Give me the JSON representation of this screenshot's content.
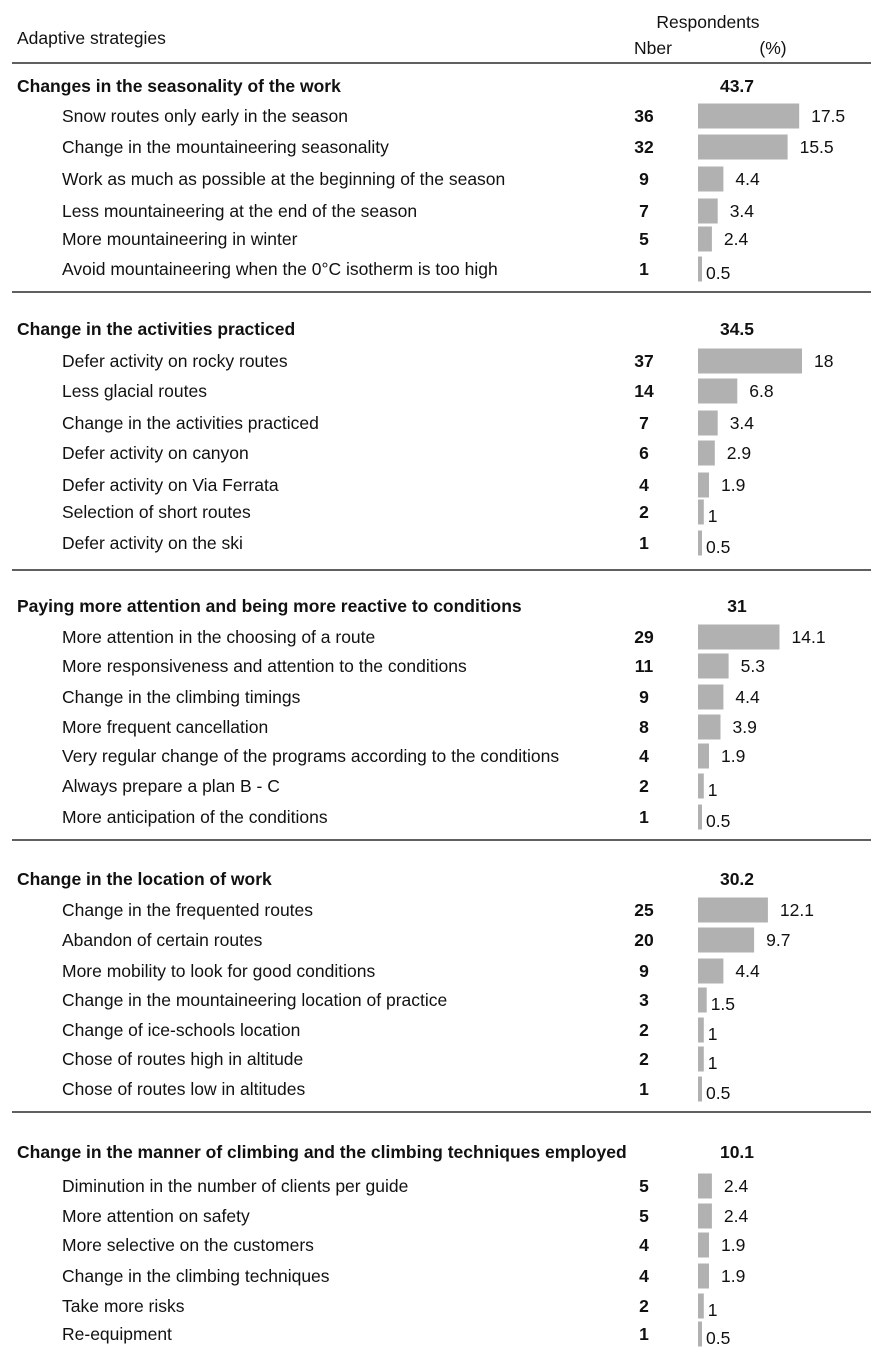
{
  "chart_data": {
    "type": "bar",
    "orientation": "horizontal",
    "header": {
      "strategies_label": "Adaptive strategies",
      "respondents_label": "Respondents",
      "count_label": "Nber",
      "percent_label": "(%)"
    },
    "groups": [
      {
        "title": "Changes in the seasonality of the work",
        "total": "43.7",
        "items": [
          {
            "label": "Snow routes only early in the season",
            "n": 36,
            "pct": 17.5,
            "pct_label": "17.5"
          },
          {
            "label": "Change in the mountaineering seasonality",
            "n": 32,
            "pct": 15.5,
            "pct_label": "15.5"
          },
          {
            "label": "Work as much as possible at the beginning of the season",
            "n": 9,
            "pct": 4.4,
            "pct_label": "4.4"
          },
          {
            "label": "Less mountaineering at the end of the season",
            "n": 7,
            "pct": 3.4,
            "pct_label": "3.4"
          },
          {
            "label": "More mountaineering in winter",
            "n": 5,
            "pct": 2.4,
            "pct_label": "2.4"
          },
          {
            "label": "Avoid mountaineering when the 0°C isotherm is too high",
            "n": 1,
            "pct": 0.5,
            "pct_label": "0.5"
          }
        ]
      },
      {
        "title": "Change in the activities practiced",
        "total": "34.5",
        "items": [
          {
            "label": "Defer activity on rocky routes",
            "n": 37,
            "pct": 18,
            "pct_label": "18"
          },
          {
            "label": "Less glacial routes",
            "n": 14,
            "pct": 6.8,
            "pct_label": "6.8"
          },
          {
            "label": "Change in the activities practiced",
            "n": 7,
            "pct": 3.4,
            "pct_label": "3.4"
          },
          {
            "label": "Defer activity on canyon",
            "n": 6,
            "pct": 2.9,
            "pct_label": "2.9"
          },
          {
            "label": "Defer activity on Via Ferrata",
            "n": 4,
            "pct": 1.9,
            "pct_label": "1.9"
          },
          {
            "label": "Selection of short routes",
            "n": 2,
            "pct": 1,
            "pct_label": "1"
          },
          {
            "label": "Defer activity on the ski",
            "n": 1,
            "pct": 0.5,
            "pct_label": "0.5"
          }
        ]
      },
      {
        "title": "Paying more attention and being more reactive to conditions",
        "total": "31",
        "items": [
          {
            "label": "More attention in the choosing of a route",
            "n": 29,
            "pct": 14.1,
            "pct_label": "14.1"
          },
          {
            "label": "More responsiveness and attention to the conditions",
            "n": 11,
            "pct": 5.3,
            "pct_label": "5.3"
          },
          {
            "label": "Change in the climbing timings",
            "n": 9,
            "pct": 4.4,
            "pct_label": "4.4"
          },
          {
            "label": "More frequent cancellation",
            "n": 8,
            "pct": 3.9,
            "pct_label": "3.9"
          },
          {
            "label": "Very regular change of the programs according to the conditions",
            "n": 4,
            "pct": 1.9,
            "pct_label": "1.9"
          },
          {
            "label": "Always prepare a plan B - C",
            "n": 2,
            "pct": 1,
            "pct_label": "1"
          },
          {
            "label": "More anticipation of the conditions",
            "n": 1,
            "pct": 0.5,
            "pct_label": "0.5"
          }
        ]
      },
      {
        "title": "Change in the location of work",
        "total": "30.2",
        "items": [
          {
            "label": "Change in the frequented routes",
            "n": 25,
            "pct": 12.1,
            "pct_label": "12.1"
          },
          {
            "label": "Abandon of certain routes",
            "n": 20,
            "pct": 9.7,
            "pct_label": "9.7"
          },
          {
            "label": "More mobility to look for good conditions",
            "n": 9,
            "pct": 4.4,
            "pct_label": "4.4"
          },
          {
            "label": "Change in the mountaineering location of  practice",
            "n": 3,
            "pct": 1.5,
            "pct_label": "1.5"
          },
          {
            "label": "Change of ice-schools location",
            "n": 2,
            "pct": 1,
            "pct_label": "1"
          },
          {
            "label": "Chose of routes high in altitude",
            "n": 2,
            "pct": 1,
            "pct_label": "1"
          },
          {
            "label": "Chose of routes low in altitudes",
            "n": 1,
            "pct": 0.5,
            "pct_label": "0.5"
          }
        ]
      },
      {
        "title": "Change in the manner of climbing and the climbing techniques employed",
        "total": "10.1",
        "items": [
          {
            "label": "Diminution in the number of clients per guide",
            "n": 5,
            "pct": 2.4,
            "pct_label": "2.4"
          },
          {
            "label": "More attention on safety",
            "n": 5,
            "pct": 2.4,
            "pct_label": "2.4"
          },
          {
            "label": "More selective on the customers",
            "n": 4,
            "pct": 1.9,
            "pct_label": "1.9"
          },
          {
            "label": "Change in the climbing techniques",
            "n": 4,
            "pct": 1.9,
            "pct_label": "1.9"
          },
          {
            "label": "Take more risks",
            "n": 2,
            "pct": 1,
            "pct_label": "1"
          },
          {
            "label": "Re-equipment",
            "n": 1,
            "pct": 0.5,
            "pct_label": "0.5"
          }
        ]
      }
    ],
    "colors": {
      "bar": "#b1b1b1",
      "text": "#111111",
      "rule": "#000000"
    }
  }
}
